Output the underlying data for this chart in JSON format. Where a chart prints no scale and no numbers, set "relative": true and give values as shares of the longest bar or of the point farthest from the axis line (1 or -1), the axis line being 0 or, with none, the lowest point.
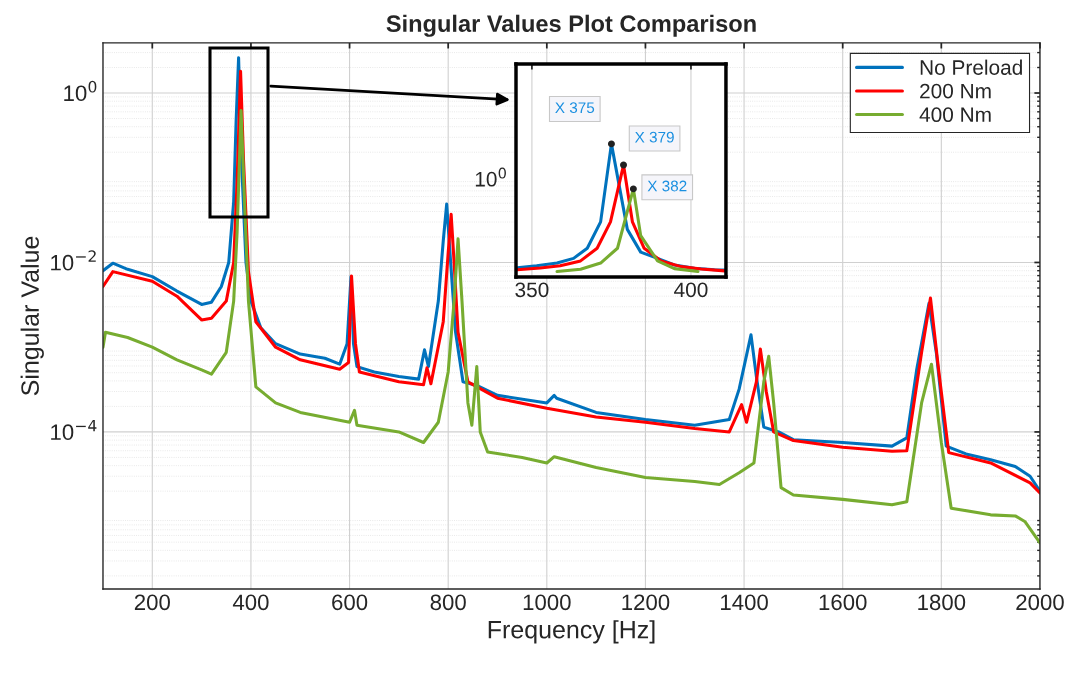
{
  "chart_data": [
    {
      "type": "line",
      "title": "Singular Values Plot Comparison",
      "xlabel": "Frequency [Hz]",
      "ylabel": "Singular Value",
      "log": "y",
      "grid": true,
      "legend": "top right",
      "xlim": [
        100,
        2000
      ],
      "xticks": [
        200,
        400,
        600,
        800,
        1000,
        1200,
        1400,
        1600,
        1800,
        2000
      ],
      "ylim": [
        1.4e-06,
        3.9
      ],
      "yticks": [
        {
          "value": 0.0001,
          "label": "10$^{−4}$"
        },
        {
          "value": 0.01,
          "label": "10$^{−2}$"
        },
        {
          "value": 1,
          "label": "10$^{0}$"
        }
      ],
      "series": [
        {
          "name": "No Preload",
          "color": "#0072bd",
          "x": [
            100,
            120,
            150,
            200,
            250,
            300,
            320,
            340,
            355,
            365,
            370,
            375,
            380,
            390,
            400,
            420,
            450,
            500,
            550,
            580,
            595,
            603,
            608,
            615,
            650,
            700,
            740,
            752,
            760,
            780,
            790,
            797,
            805,
            815,
            830,
            860,
            900,
            1000,
            1015,
            1020,
            1100,
            1200,
            1300,
            1370,
            1390,
            1414,
            1425,
            1440,
            1470,
            1500,
            1600,
            1700,
            1730,
            1750,
            1775,
            1790,
            1810,
            1850,
            1900,
            1950,
            1980,
            2000
          ],
          "values": [
            0.008,
            0.0098,
            0.0083,
            0.0068,
            0.0046,
            0.0032,
            0.0034,
            0.0052,
            0.01,
            0.052,
            0.47,
            2.6,
            0.21,
            0.01,
            0.0035,
            0.0017,
            0.0011,
            0.00083,
            0.00074,
            0.00063,
            0.0011,
            0.0068,
            0.0011,
            0.00059,
            0.00051,
            0.00045,
            0.00042,
            0.00093,
            0.00059,
            0.0035,
            0.018,
            0.049,
            0.01,
            0.0015,
            0.00039,
            0.00035,
            0.00027,
            0.00022,
            0.00027,
            0.00025,
            0.00017,
            0.00014,
            0.00012,
            0.00014,
            0.00032,
            0.0014,
            0.00045,
            0.000114,
            0.0001,
            8.1e-05,
            7.5e-05,
            6.8e-05,
            8.5e-05,
            0.00054,
            0.0033,
            0.00085,
            6.8e-05,
            5.5e-05,
            4.7e-05,
            3.9e-05,
            3e-05,
            2e-05
          ]
        },
        {
          "name": "200 Nm",
          "color": "#ff0000",
          "x": [
            100,
            120,
            200,
            250,
            300,
            320,
            350,
            365,
            372,
            379,
            385,
            395,
            410,
            450,
            500,
            580,
            598,
            604,
            612,
            620,
            700,
            750,
            757,
            765,
            790,
            800,
            806,
            812,
            820,
            840,
            900,
            1000,
            1100,
            1200,
            1300,
            1370,
            1395,
            1405,
            1425,
            1433,
            1445,
            1460,
            1500,
            1600,
            1700,
            1730,
            1760,
            1778,
            1795,
            1815,
            1900,
            1980,
            2000
          ],
          "values": [
            0.0052,
            0.0078,
            0.006,
            0.004,
            0.0021,
            0.0022,
            0.0035,
            0.01,
            0.091,
            1.8,
            0.16,
            0.0078,
            0.002,
            0.001,
            0.00071,
            0.00055,
            0.00066,
            0.0069,
            0.0011,
            0.00051,
            0.00039,
            0.00036,
            0.00057,
            0.00037,
            0.002,
            0.013,
            0.037,
            0.01,
            0.0015,
            0.00039,
            0.00025,
            0.00019,
            0.00015,
            0.00013,
            0.00011,
            0.0001,
            0.00021,
            0.00013,
            0.00039,
            0.00095,
            0.0003,
            0.0001,
            7.9e-05,
            6.6e-05,
            5.9e-05,
            6e-05,
            0.00087,
            0.0038,
            0.00051,
            5.7e-05,
            4.3e-05,
            2.5e-05,
            1.9e-05
          ]
        },
        {
          "name": "400 Nm",
          "color": "#77ac30",
          "x": [
            100,
            105,
            150,
            200,
            250,
            300,
            320,
            350,
            365,
            372,
            380,
            387,
            395,
            410,
            450,
            500,
            600,
            610,
            615,
            700,
            750,
            780,
            800,
            812,
            820,
            828,
            840,
            848,
            858,
            865,
            880,
            950,
            1000,
            1015,
            1100,
            1200,
            1300,
            1350,
            1390,
            1420,
            1440,
            1450,
            1460,
            1475,
            1500,
            1600,
            1700,
            1730,
            1760,
            1780,
            1800,
            1820,
            1900,
            1950,
            1970,
            2000
          ],
          "values": [
            0.001,
            0.0015,
            0.0013,
            0.001,
            0.00071,
            0.00054,
            0.00048,
            0.00087,
            0.0035,
            0.023,
            0.62,
            0.053,
            0.0035,
            0.00034,
            0.00022,
            0.00017,
            0.00013,
            0.00018,
            0.00012,
            0.0001,
            7.5e-05,
            0.00013,
            0.00051,
            0.0035,
            0.019,
            0.0035,
            0.00022,
            0.00012,
            0.00059,
            0.0001,
            5.8e-05,
            5e-05,
            4.3e-05,
            5.1e-05,
            3.8e-05,
            2.9e-05,
            2.6e-05,
            2.4e-05,
            3.3e-05,
            4.3e-05,
            0.00039,
            0.00078,
            0.00022,
            2.2e-05,
            1.8e-05,
            1.6e-05,
            1.38e-05,
            1.5e-05,
            0.00022,
            0.00063,
            7.5e-05,
            1.26e-05,
            1.05e-05,
            1.02e-05,
            8.7e-06,
            4.9e-06
          ]
        }
      ]
    },
    {
      "type": "line",
      "grid": "x",
      "relative": true,
      "xlim": [
        345,
        411
      ],
      "xticks": [
        350,
        400
      ],
      "annotations": [
        "10$^{0}$",
        {
          "text": "X 375",
          "x": 375,
          "y": 1.0
        },
        {
          "text": "X 379",
          "x": 378.8,
          "y": 0.841
        },
        {
          "text": "X 382",
          "x": 381.9,
          "y": 0.662
        }
      ],
      "series": [
        {
          "color": "#0072bd",
          "x": [
            345.4,
            351.5,
            357.9,
            363.1,
            367.4,
            371.6,
            375.0,
            380.0,
            384.2,
            389.5,
            394.8,
            401.1,
            407.4,
            410.6
          ],
          "values": [
            0.07,
            0.084,
            0.105,
            0.14,
            0.216,
            0.414,
            1.0,
            0.358,
            0.187,
            0.14,
            0.09,
            0.066,
            0.054,
            0.052
          ]
        },
        {
          "color": "#ff0000",
          "x": [
            345.4,
            352.6,
            358.9,
            365.3,
            370.5,
            374.7,
            378.8,
            381.6,
            385.3,
            390.6,
            396.9,
            403.2,
            410.6
          ],
          "values": [
            0.054,
            0.068,
            0.084,
            0.121,
            0.216,
            0.414,
            0.841,
            0.414,
            0.216,
            0.121,
            0.078,
            0.061,
            0.046
          ]
        },
        {
          "color": "#77ac30",
          "x": [
            357.9,
            365.3,
            371.6,
            376.9,
            381.9,
            384.2,
            389.5,
            394.8,
            402.2
          ],
          "values": [
            0.041,
            0.059,
            0.105,
            0.216,
            0.662,
            0.311,
            0.121,
            0.063,
            0.041
          ]
        }
      ]
    }
  ]
}
